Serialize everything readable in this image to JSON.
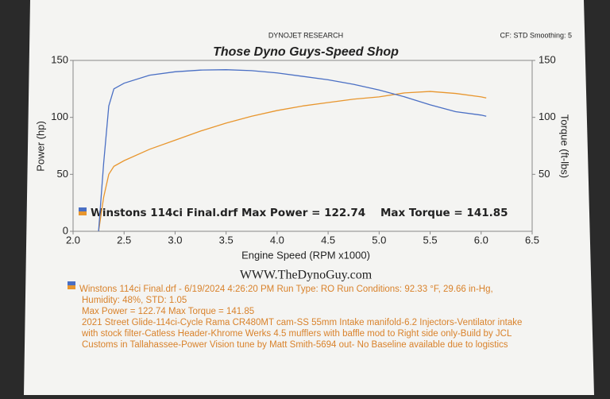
{
  "chart_data": {
    "type": "line",
    "header_left": "DYNOJET RESEARCH",
    "header_right": "CF: STD  Smoothing: 5",
    "title": "Those Dyno Guys-Speed Shop",
    "xlabel": "Engine Speed (RPM x1000)",
    "ylabel": "Power (hp)",
    "y2label": "Torque (ft-lbs)",
    "annotation": "Winstons 114ci Final.drf Max Power = 122.74    Max Torque = 141.85",
    "website": "WWW.TheDynoGuy.com",
    "footer": [
      "Winstons 114ci Final.drf - 6/19/2024 4:26:20 PM  Run Type: RO  Run Conditions: 92.33 °F, 29.66 in-Hg,",
      "Humidity:  48%, STD: 1.05",
      "Max Power = 122.74  Max Torque = 141.85",
      "2021 Street Glide-114ci-Cycle Rama CR480MT cam-SS 55mm Intake manifold-6.2 Injectors-Ventilator intake",
      "with stock filter-Catless Header-Khrome Werks 4.5 mufflers with baffle mod to Right side only-Build by JCL",
      "Customs in Tallahassee-Power Vision tune by Matt Smith-5694 out- No Baseline available due to logistics"
    ],
    "x": [
      2.25,
      2.3,
      2.35,
      2.4,
      2.5,
      2.75,
      3.0,
      3.25,
      3.5,
      3.75,
      4.0,
      4.25,
      4.5,
      4.75,
      5.0,
      5.25,
      5.5,
      5.75,
      6.0,
      6.05
    ],
    "series": [
      {
        "color": "#e8962e",
        "values": [
          0,
          30,
          50,
          57,
          62,
          72,
          80,
          88,
          95,
          101,
          106,
          110,
          113,
          116,
          118,
          121.5,
          122.74,
          121,
          118,
          117
        ]
      },
      {
        "color": "#4a6fc4",
        "axis": "y2",
        "values": [
          0,
          60,
          110,
          125,
          130,
          137,
          140,
          141.5,
          141.85,
          141,
          139,
          136,
          133,
          129,
          124,
          118,
          111,
          105,
          102,
          101
        ]
      }
    ],
    "xlim": [
      2,
      6.5
    ],
    "xticks": [
      {
        "value": 2,
        "label": "2.0"
      },
      2.5,
      {
        "value": 3,
        "label": "3.0"
      },
      3.5,
      {
        "value": 4,
        "label": "4.0"
      },
      4.5,
      {
        "value": 5,
        "label": "5.0"
      },
      5.5,
      {
        "value": 6,
        "label": "6.0"
      },
      6.5
    ],
    "ylim": [
      0,
      150
    ],
    "yticks": [
      0,
      50,
      100,
      150
    ],
    "y2lim": [
      0,
      150
    ],
    "y2ticks": [
      50,
      100,
      150
    ]
  }
}
